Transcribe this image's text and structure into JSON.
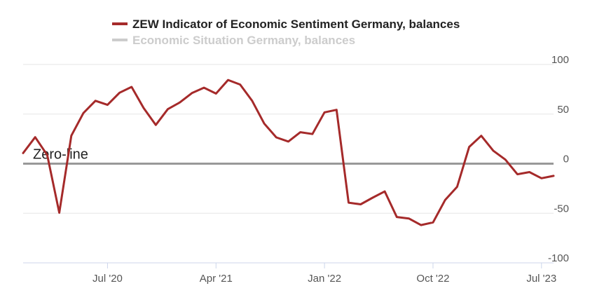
{
  "chart_data": {
    "type": "line",
    "legend": [
      {
        "name": "ZEW Indicator of Economic Sentiment Germany, balances",
        "color": "#a52a2a",
        "active": true
      },
      {
        "name": "Economic Situation Germany, balances",
        "color": "#cccccc",
        "active": false
      }
    ],
    "zero_line_label": "Zero-line",
    "zero_line_value": 0,
    "ylim": [
      -100,
      100
    ],
    "yticks": [
      {
        "value": 100,
        "label": "100"
      },
      {
        "value": 50,
        "label": "50"
      },
      {
        "value": 0,
        "label": "0"
      },
      {
        "value": -50,
        "label": "-50"
      },
      {
        "value": -100,
        "label": "-100"
      }
    ],
    "xlim": [
      "2019-12",
      "2023-08"
    ],
    "xticks": [
      {
        "x": "2020-07",
        "label": "Jul '20"
      },
      {
        "x": "2021-04",
        "label": "Apr '21"
      },
      {
        "x": "2022-01",
        "label": "Jan '22"
      },
      {
        "x": "2022-10",
        "label": "Oct '22"
      },
      {
        "x": "2023-07",
        "label": "Jul '23"
      }
    ],
    "grid": true,
    "legend_position": "top-center",
    "series": [
      {
        "name": "ZEW Indicator of Economic Sentiment Germany, balances",
        "color": "#a52a2a",
        "x": [
          "2019-12",
          "2020-01",
          "2020-02",
          "2020-03",
          "2020-04",
          "2020-05",
          "2020-06",
          "2020-07",
          "2020-08",
          "2020-09",
          "2020-10",
          "2020-11",
          "2020-12",
          "2021-01",
          "2021-02",
          "2021-03",
          "2021-04",
          "2021-05",
          "2021-06",
          "2021-07",
          "2021-08",
          "2021-09",
          "2021-10",
          "2021-11",
          "2021-12",
          "2022-01",
          "2022-02",
          "2022-03",
          "2022-04",
          "2022-05",
          "2022-06",
          "2022-07",
          "2022-08",
          "2022-09",
          "2022-10",
          "2022-11",
          "2022-12",
          "2023-01",
          "2023-02",
          "2023-03",
          "2023-04",
          "2023-05",
          "2023-06",
          "2023-07",
          "2023-08"
        ],
        "y": [
          10.7,
          26.7,
          8.7,
          -49.5,
          28.2,
          51.0,
          63.4,
          59.3,
          71.5,
          77.4,
          56.1,
          39.0,
          55.0,
          61.8,
          71.2,
          76.6,
          70.7,
          84.4,
          79.8,
          63.3,
          40.4,
          26.5,
          22.3,
          31.7,
          29.9,
          51.7,
          54.3,
          -39.3,
          -41.0,
          -34.3,
          -28.0,
          -53.8,
          -55.3,
          -61.9,
          -59.2,
          -36.7,
          -23.3,
          16.9,
          28.1,
          13.0,
          4.1,
          -10.7,
          -8.5,
          -14.7,
          -12.3
        ]
      }
    ]
  }
}
